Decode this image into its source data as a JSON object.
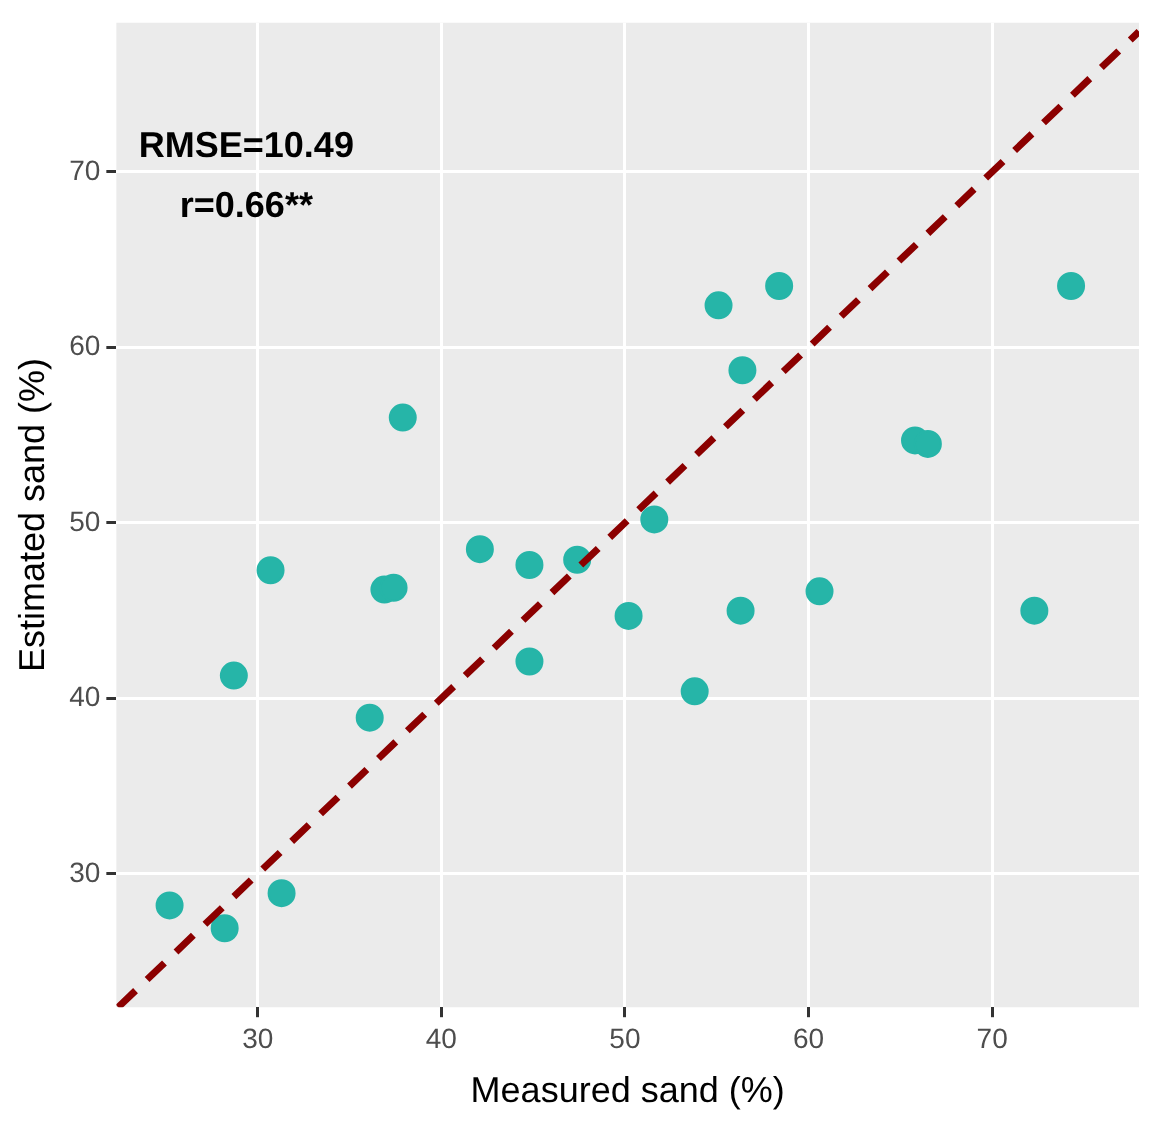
{
  "chart_data": {
    "type": "scatter",
    "xlabel": "Measured sand (%)",
    "ylabel": "Estimated sand (%)",
    "xlim": [
      22.3,
      78
    ],
    "ylim": [
      22.4,
      78.5
    ],
    "xticks": [
      30,
      40,
      50,
      60,
      70
    ],
    "yticks": [
      30,
      40,
      50,
      60,
      70
    ],
    "grid": true,
    "legend": false,
    "marker": "circle",
    "annotations": [
      "RMSE=10.49",
      "r=0.66**"
    ],
    "series": [
      {
        "color": "#26b5a8",
        "x": [
          25.2,
          28.2,
          28.7,
          30.7,
          31.3,
          36.1,
          36.9,
          37.4,
          37.9,
          42.1,
          44.8,
          44.8,
          47.4,
          50.2,
          51.6,
          53.8,
          55.1,
          56.4,
          56.3,
          58.4,
          60.6,
          65.8,
          66.5,
          72.3,
          74.3
        ],
        "values": [
          28.2,
          26.9,
          41.3,
          47.3,
          28.9,
          38.9,
          46.2,
          46.3,
          56.0,
          48.5,
          42.1,
          47.6,
          47.9,
          44.7,
          50.2,
          40.4,
          62.4,
          58.7,
          45.0,
          63.5,
          46.1,
          54.7,
          54.5,
          45.0,
          63.5
        ]
      },
      {
        "type": "line",
        "color": "#8b0000",
        "line_style": "dashed",
        "marker": "none",
        "x": [
          22.4,
          78
        ],
        "values": [
          22.4,
          78
        ]
      }
    ]
  }
}
